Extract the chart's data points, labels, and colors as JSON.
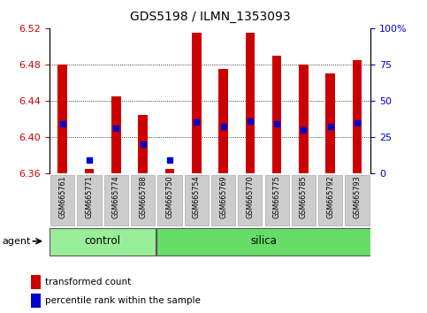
{
  "title": "GDS5198 / ILMN_1353093",
  "samples": [
    "GSM665761",
    "GSM665771",
    "GSM665774",
    "GSM665788",
    "GSM665750",
    "GSM665754",
    "GSM665769",
    "GSM665770",
    "GSM665775",
    "GSM665785",
    "GSM665792",
    "GSM665793"
  ],
  "bar_bottom": 6.36,
  "bar_top": [
    6.48,
    6.365,
    6.445,
    6.425,
    6.365,
    6.515,
    6.475,
    6.515,
    6.49,
    6.48,
    6.47,
    6.485
  ],
  "percentile": [
    6.415,
    6.375,
    6.41,
    6.393,
    6.375,
    6.417,
    6.412,
    6.418,
    6.415,
    6.408,
    6.412,
    6.416
  ],
  "ylim_left": [
    6.36,
    6.52
  ],
  "ylim_right": [
    0,
    100
  ],
  "yticks_left": [
    6.36,
    6.4,
    6.44,
    6.48,
    6.52
  ],
  "yticks_right": [
    0,
    25,
    50,
    75,
    100
  ],
  "ytick_labels_right": [
    "0",
    "25",
    "50",
    "75",
    "100%"
  ],
  "gridlines": [
    6.4,
    6.44,
    6.48
  ],
  "control_count": 4,
  "silica_count": 8,
  "bar_color": "#cc0000",
  "dot_color": "#0000cc",
  "control_color": "#99ee99",
  "silica_color": "#66dd66",
  "agent_label": "agent",
  "control_label": "control",
  "silica_label": "silica",
  "legend_bar": "transformed count",
  "legend_dot": "percentile rank within the sample",
  "background_color": "#ffffff"
}
